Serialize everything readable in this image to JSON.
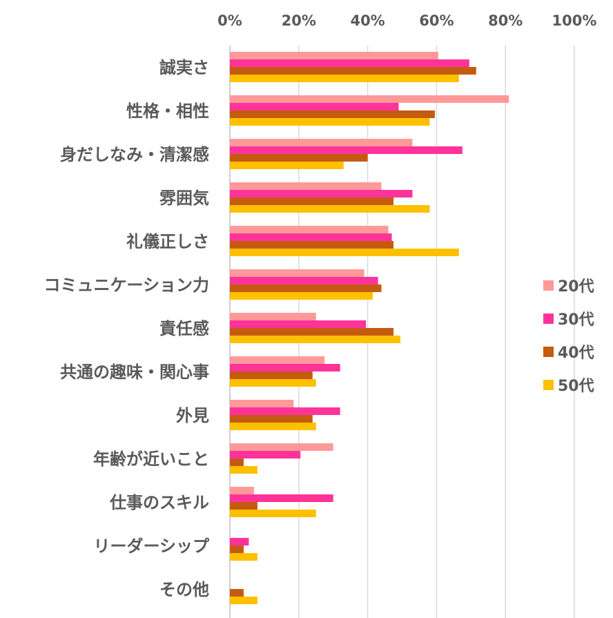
{
  "chart_data": {
    "type": "bar",
    "orientation": "horizontal",
    "categories": [
      "誠実さ",
      "性格・相性",
      "身だしなみ・清潔感",
      "雰囲気",
      "礼儀正しさ",
      "コミュニケーション力",
      "責任感",
      "共通の趣味・関心事",
      "外見",
      "年齢が近いこと",
      "仕事のスキル",
      "リーダーシップ",
      "その他"
    ],
    "series": [
      {
        "name": "20代",
        "color": "#ff9999",
        "values": [
          60.5,
          81,
          53,
          44,
          46,
          39,
          25,
          27.5,
          18.5,
          30,
          7,
          0,
          0
        ]
      },
      {
        "name": "30代",
        "color": "#ff3399",
        "values": [
          69.5,
          49,
          67.5,
          53,
          47,
          43,
          39.5,
          32,
          32,
          20.5,
          30,
          5.5,
          0
        ]
      },
      {
        "name": "40代",
        "color": "#c55a11",
        "values": [
          71.5,
          59.5,
          40,
          47.5,
          47.5,
          44,
          47.5,
          24,
          24,
          4,
          8,
          4,
          4
        ]
      },
      {
        "name": "50代",
        "color": "#ffc000",
        "values": [
          66.5,
          58,
          33,
          58,
          66.5,
          41.5,
          49.5,
          25,
          25,
          8,
          25,
          8,
          8
        ]
      }
    ],
    "ticks": [
      "0%",
      "20%",
      "40%",
      "60%",
      "80%",
      "100%"
    ],
    "xlim": [
      0,
      100
    ],
    "title": "",
    "xlabel": "",
    "ylabel": "",
    "legend": "right"
  }
}
